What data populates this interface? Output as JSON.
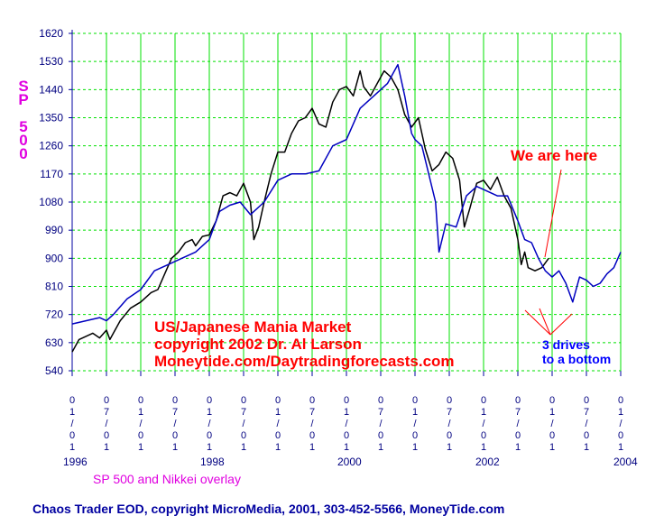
{
  "chart_data": {
    "type": "line",
    "title": "US/Japanese Mania Market",
    "subtitle": "SP 500 and Nikkei overlay",
    "ylabel_chars": [
      "S",
      "P",
      "",
      "5",
      "0",
      "0"
    ],
    "y_ticks": [
      540,
      630,
      720,
      810,
      900,
      990,
      1080,
      1170,
      1260,
      1350,
      1440,
      1530,
      1620
    ],
    "ylim": [
      540,
      1620
    ],
    "xlim": [
      1996.0,
      2004.0
    ],
    "x_ticks": [
      {
        "x": 1996.0,
        "label": "0\n1\n/\n0\n1"
      },
      {
        "x": 1996.5,
        "label": "0\n7\n/\n0\n1"
      },
      {
        "x": 1997.0,
        "label": "0\n1\n/\n0\n1"
      },
      {
        "x": 1997.5,
        "label": "0\n7\n/\n0\n1"
      },
      {
        "x": 1998.0,
        "label": "0\n1\n/\n0\n1"
      },
      {
        "x": 1998.5,
        "label": "0\n7\n/\n0\n1"
      },
      {
        "x": 1999.0,
        "label": "0\n1\n/\n0\n1"
      },
      {
        "x": 1999.5,
        "label": "0\n7\n/\n0\n1"
      },
      {
        "x": 2000.0,
        "label": "0\n1\n/\n0\n1"
      },
      {
        "x": 2000.5,
        "label": "0\n7\n/\n0\n1"
      },
      {
        "x": 2001.0,
        "label": "0\n1\n/\n0\n1"
      },
      {
        "x": 2001.5,
        "label": "0\n7\n/\n0\n1"
      },
      {
        "x": 2002.0,
        "label": "0\n1\n/\n0\n1"
      },
      {
        "x": 2002.5,
        "label": "0\n7\n/\n0\n1"
      },
      {
        "x": 2003.0,
        "label": "0\n1\n/\n0\n1"
      },
      {
        "x": 2003.5,
        "label": "0\n7\n/\n0\n1"
      },
      {
        "x": 2004.0,
        "label": "0\n1\n/\n0\n1"
      }
    ],
    "year_labels": [
      "1996",
      "1998",
      "2000",
      "2002",
      "2004"
    ],
    "grid": true,
    "series": [
      {
        "name": "SP 500",
        "color": "#000000",
        "x": [
          1996.0,
          1996.1,
          1996.2,
          1996.3,
          1996.4,
          1996.5,
          1996.55,
          1996.7,
          1996.85,
          1997.0,
          1997.15,
          1997.25,
          1997.35,
          1997.45,
          1997.55,
          1997.65,
          1997.75,
          1997.8,
          1997.9,
          1998.0,
          1998.1,
          1998.2,
          1998.3,
          1998.4,
          1998.5,
          1998.6,
          1998.65,
          1998.72,
          1998.8,
          1998.9,
          1999.0,
          1999.1,
          1999.2,
          1999.3,
          1999.4,
          1999.5,
          1999.6,
          1999.7,
          1999.8,
          1999.9,
          2000.0,
          2000.1,
          2000.2,
          2000.25,
          2000.35,
          2000.45,
          2000.55,
          2000.65,
          2000.75,
          2000.85,
          2000.95,
          2001.05,
          2001.15,
          2001.25,
          2001.35,
          2001.45,
          2001.55,
          2001.65,
          2001.72,
          2001.8,
          2001.9,
          2002.0,
          2002.1,
          2002.2,
          2002.3,
          2002.4,
          2002.5,
          2002.55,
          2002.6,
          2002.65,
          2002.75,
          2002.85,
          2002.95
        ],
        "y": [
          600,
          640,
          650,
          660,
          645,
          670,
          640,
          700,
          740,
          760,
          790,
          800,
          850,
          900,
          920,
          950,
          960,
          940,
          970,
          975,
          1020,
          1100,
          1110,
          1100,
          1140,
          1080,
          960,
          1000,
          1080,
          1170,
          1240,
          1240,
          1300,
          1340,
          1350,
          1380,
          1330,
          1320,
          1400,
          1440,
          1450,
          1420,
          1500,
          1450,
          1420,
          1460,
          1500,
          1480,
          1440,
          1360,
          1320,
          1350,
          1250,
          1180,
          1200,
          1240,
          1220,
          1150,
          1000,
          1060,
          1140,
          1150,
          1120,
          1160,
          1100,
          1060,
          960,
          880,
          920,
          870,
          860,
          870,
          900
        ]
      },
      {
        "name": "Nikkei overlay",
        "color": "#0000c0",
        "x": [
          1996.0,
          1996.2,
          1996.4,
          1996.5,
          1996.6,
          1996.8,
          1997.0,
          1997.2,
          1997.4,
          1997.6,
          1997.8,
          1998.0,
          1998.15,
          1998.3,
          1998.45,
          1998.6,
          1998.8,
          1999.0,
          1999.2,
          1999.4,
          1999.6,
          1999.8,
          2000.0,
          2000.2,
          2000.4,
          2000.6,
          2000.75,
          2000.85,
          2000.95,
          2001.0,
          2001.1,
          2001.2,
          2001.3,
          2001.35,
          2001.45,
          2001.6,
          2001.75,
          2001.9,
          2002.0,
          2002.2,
          2002.35,
          2002.5,
          2002.6,
          2002.7,
          2002.8,
          2002.9,
          2003.0,
          2003.1,
          2003.2,
          2003.3,
          2003.4,
          2003.5,
          2003.6,
          2003.7,
          2003.8,
          2003.9,
          2004.0
        ],
        "y": [
          690,
          700,
          710,
          700,
          720,
          770,
          800,
          860,
          880,
          900,
          920,
          960,
          1050,
          1070,
          1080,
          1040,
          1080,
          1150,
          1170,
          1170,
          1180,
          1260,
          1280,
          1380,
          1420,
          1460,
          1520,
          1420,
          1300,
          1280,
          1260,
          1170,
          1080,
          920,
          1010,
          1000,
          1100,
          1130,
          1120,
          1100,
          1100,
          1020,
          960,
          950,
          900,
          860,
          840,
          860,
          820,
          760,
          840,
          830,
          810,
          820,
          850,
          870,
          920
        ]
      }
    ],
    "annotations": {
      "here": "We are here",
      "title_lines": [
        "US/Japanese Mania Market",
        "copyright 2002 Dr. Al Larson",
        "Moneytide.com/Daytradingforecasts.com"
      ],
      "drives_lines": [
        "3 drives",
        "to a bottom"
      ]
    },
    "footer": "Chaos Trader EOD, copyright MicroMedia, 2001, 303-452-5566, MoneyTide.com"
  },
  "colors": {
    "grid": "#00e000",
    "axis": "#0000a0",
    "label": "#000080",
    "accent_red": "#ff0000",
    "accent_magenta": "#e000e0"
  }
}
